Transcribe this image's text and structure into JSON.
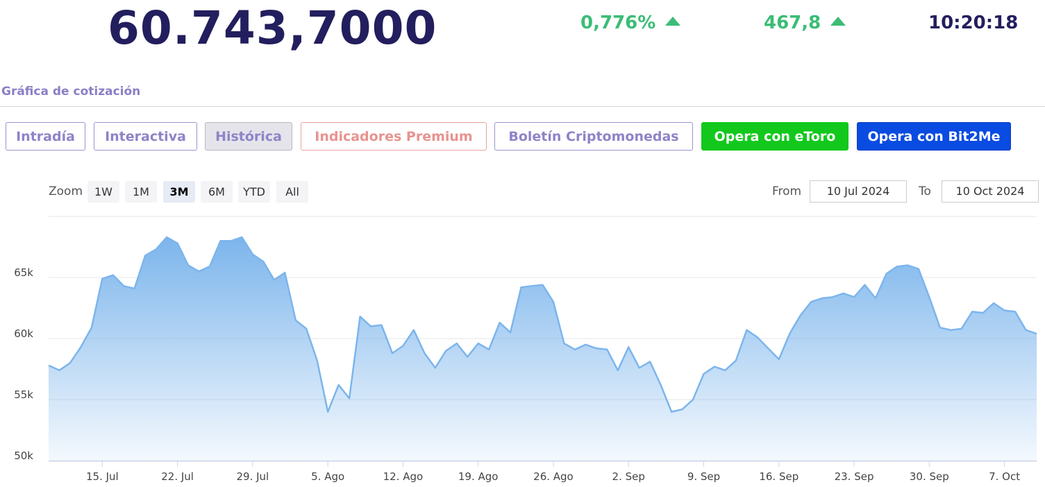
{
  "header": {
    "price": "60.743,7000",
    "change_pct": "0,776%",
    "change_abs": "467,8",
    "time": "10:20:18"
  },
  "section_title": "Gráfica de cotización",
  "tabs": [
    {
      "label": "Intradía"
    },
    {
      "label": "Interactiva"
    },
    {
      "label": "Histórica"
    },
    {
      "label": "Indicadores Premium"
    },
    {
      "label": "Boletín Criptomonedas"
    },
    {
      "label": "Opera con eToro"
    },
    {
      "label": "Opera con Bit2Me"
    }
  ],
  "zoom": {
    "label": "Zoom",
    "options": [
      "1W",
      "1M",
      "3M",
      "6M",
      "YTD",
      "All"
    ],
    "selected": "3M"
  },
  "range": {
    "from_label": "From",
    "from_value": "10 Jul 2024",
    "to_label": "To",
    "to_value": "10 Oct 2024"
  },
  "colors": {
    "price": "#231e5d",
    "up": "#3bbd76",
    "line": "#7cb5ec",
    "etoro": "#13c81d",
    "bit2me": "#0a4be1"
  },
  "chart_data": {
    "type": "area",
    "xlabel": "",
    "ylabel": "",
    "ylim": [
      50000,
      70000
    ],
    "y_ticks": [
      50000,
      55000,
      60000,
      65000
    ],
    "y_tick_labels": [
      "50k",
      "55k",
      "60k",
      "65k"
    ],
    "x_range": [
      "2024-07-10",
      "2024-10-10"
    ],
    "x_ticks": [
      "2024-07-15",
      "2024-07-22",
      "2024-07-29",
      "2024-08-05",
      "2024-08-12",
      "2024-08-19",
      "2024-08-26",
      "2024-09-02",
      "2024-09-09",
      "2024-09-16",
      "2024-09-23",
      "2024-09-30",
      "2024-10-07"
    ],
    "x_tick_labels": [
      "15. Jul",
      "22. Jul",
      "29. Jul",
      "5. Ago",
      "12. Ago",
      "19. Ago",
      "26. Ago",
      "2. Sep",
      "9. Sep",
      "16. Sep",
      "23. Sep",
      "30. Sep",
      "7. Oct"
    ],
    "grid": true,
    "x": [
      "2024-07-10",
      "2024-07-11",
      "2024-07-12",
      "2024-07-13",
      "2024-07-14",
      "2024-07-15",
      "2024-07-16",
      "2024-07-17",
      "2024-07-18",
      "2024-07-19",
      "2024-07-20",
      "2024-07-21",
      "2024-07-22",
      "2024-07-23",
      "2024-07-24",
      "2024-07-25",
      "2024-07-26",
      "2024-07-27",
      "2024-07-28",
      "2024-07-29",
      "2024-07-30",
      "2024-07-31",
      "2024-08-01",
      "2024-08-02",
      "2024-08-03",
      "2024-08-04",
      "2024-08-05",
      "2024-08-06",
      "2024-08-07",
      "2024-08-08",
      "2024-08-09",
      "2024-08-10",
      "2024-08-11",
      "2024-08-12",
      "2024-08-13",
      "2024-08-14",
      "2024-08-15",
      "2024-08-16",
      "2024-08-17",
      "2024-08-18",
      "2024-08-19",
      "2024-08-20",
      "2024-08-21",
      "2024-08-22",
      "2024-08-23",
      "2024-08-24",
      "2024-08-25",
      "2024-08-26",
      "2024-08-27",
      "2024-08-28",
      "2024-08-29",
      "2024-08-30",
      "2024-08-31",
      "2024-09-01",
      "2024-09-02",
      "2024-09-03",
      "2024-09-04",
      "2024-09-05",
      "2024-09-06",
      "2024-09-07",
      "2024-09-08",
      "2024-09-09",
      "2024-09-10",
      "2024-09-11",
      "2024-09-12",
      "2024-09-13",
      "2024-09-14",
      "2024-09-15",
      "2024-09-16",
      "2024-09-17",
      "2024-09-18",
      "2024-09-19",
      "2024-09-20",
      "2024-09-21",
      "2024-09-22",
      "2024-09-23",
      "2024-09-24",
      "2024-09-25",
      "2024-09-26",
      "2024-09-27",
      "2024-09-28",
      "2024-09-29",
      "2024-09-30",
      "2024-10-01",
      "2024-10-02",
      "2024-10-03",
      "2024-10-04",
      "2024-10-05",
      "2024-10-06",
      "2024-10-07",
      "2024-10-08",
      "2024-10-09",
      "2024-10-10"
    ],
    "values": [
      57800,
      57400,
      58000,
      59300,
      60900,
      64900,
      65200,
      64300,
      64100,
      66800,
      67300,
      68300,
      67800,
      66000,
      65500,
      65900,
      68000,
      68000,
      68300,
      66900,
      66300,
      64800,
      65400,
      61500,
      60800,
      58200,
      54000,
      56200,
      55100,
      61800,
      61000,
      61100,
      58800,
      59400,
      60700,
      58800,
      57600,
      59000,
      59600,
      58500,
      59600,
      59100,
      61300,
      60500,
      64200,
      64300,
      64400,
      63000,
      59600,
      59100,
      59500,
      59200,
      59100,
      57400,
      59300,
      57600,
      58100,
      56200,
      54000,
      54200,
      55000,
      57100,
      57700,
      57400,
      58200,
      60700,
      60100,
      59200,
      58300,
      60400,
      61900,
      63000,
      63300,
      63400,
      63700,
      63400,
      64400,
      63300,
      65300,
      65900,
      66000,
      65700,
      63400,
      60900,
      60700,
      60800,
      62200,
      62100,
      62900,
      62300,
      62200,
      60700,
      60400
    ]
  }
}
